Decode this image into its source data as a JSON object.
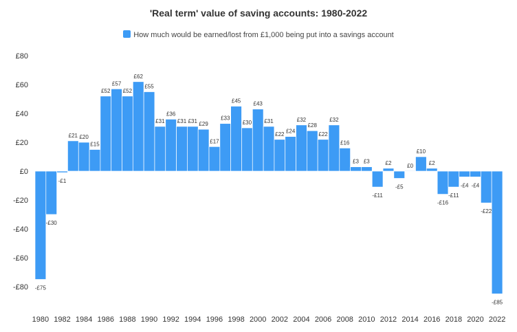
{
  "chart_data": {
    "type": "bar",
    "title": "'Real term' value of saving accounts: 1980-2022",
    "currency_symbol": "£",
    "x": [
      1980,
      1981,
      1982,
      1983,
      1984,
      1985,
      1986,
      1987,
      1988,
      1989,
      1990,
      1991,
      1992,
      1993,
      1994,
      1995,
      1996,
      1997,
      1998,
      1999,
      2000,
      2001,
      2002,
      2003,
      2004,
      2005,
      2006,
      2007,
      2008,
      2009,
      2010,
      2011,
      2012,
      2013,
      2014,
      2015,
      2016,
      2017,
      2018,
      2019,
      2020,
      2021,
      2022
    ],
    "x_tick_labels": [
      "1980",
      "1982",
      "1984",
      "1986",
      "1988",
      "1990",
      "1992",
      "1994",
      "1996",
      "1998",
      "2000",
      "2002",
      "2004",
      "2006",
      "2008",
      "2010",
      "2012",
      "2014",
      "2016",
      "2018",
      "2020",
      "2022"
    ],
    "series": [
      {
        "name": "How much would be earned/lost from £1,000 being put into a savings account",
        "color": "#3d9bf5",
        "values": [
          -75,
          -30,
          -1,
          21,
          20,
          15,
          52,
          57,
          52,
          62,
          55,
          31,
          36,
          31,
          31,
          29,
          17,
          33,
          45,
          30,
          43,
          31,
          22,
          24,
          32,
          28,
          22,
          32,
          16,
          3,
          3,
          -11,
          2,
          -5,
          0,
          10,
          2,
          -16,
          -11,
          -4,
          -4,
          -22,
          -85
        ],
        "data_labels": [
          "-£75",
          "-£30",
          "-£1",
          "£21",
          "£20",
          "£15",
          "£52",
          "£57",
          "£52",
          "£62",
          "£55",
          "£31",
          "£36",
          "£31",
          "£31",
          "£29",
          "£17",
          "£33",
          "£45",
          "£30",
          "£43",
          "£31",
          "£22",
          "£24",
          "£32",
          "£28",
          "£22",
          "£32",
          "£16",
          "£3",
          "£3",
          "-£11",
          "£2",
          "-£5",
          "£0",
          "£10",
          "£2",
          "-£16",
          "-£11",
          "-£4",
          "-£4",
          "-£22",
          "-£85"
        ]
      }
    ],
    "y_tick_labels": [
      "-£80",
      "-£60",
      "-£40",
      "-£20",
      "£0",
      "£20",
      "£40",
      "£60",
      "£80"
    ],
    "y_ticks": [
      -80,
      -60,
      -40,
      -20,
      0,
      20,
      40,
      60,
      80
    ],
    "ylim": [
      -90,
      80
    ],
    "grid": false,
    "legend_position": "top-center"
  }
}
